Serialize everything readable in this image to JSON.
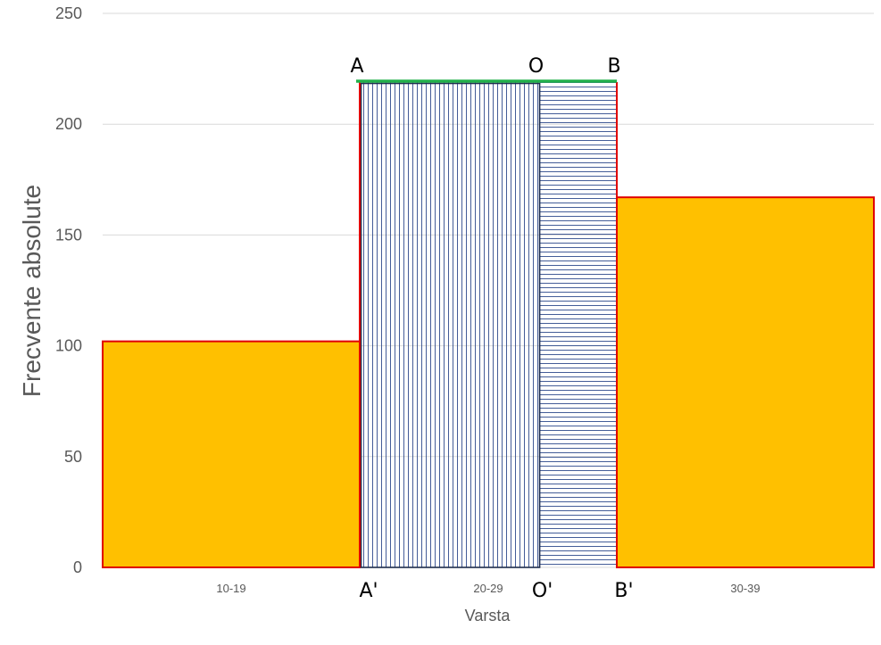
{
  "chart_data": {
    "type": "bar",
    "title": "",
    "xlabel": "Varsta",
    "ylabel": "Frecvente absolute",
    "categories": [
      "10-19",
      "20-29",
      "30-39"
    ],
    "values": [
      102,
      219,
      167
    ],
    "ylim": [
      0,
      250
    ],
    "yticks": [
      "0",
      "50",
      "100",
      "150",
      "200",
      "250"
    ],
    "grid": true,
    "colors": {
      "bar_fill": "#FFC000",
      "bar_stroke": "#E00000",
      "hatch": "#2E4A8C",
      "outline": "#1F2D4D",
      "top_line": "#22B04B",
      "grid": "#D9D9D9"
    },
    "annotations": {
      "top": [
        "A",
        "O",
        "B"
      ],
      "bottom": [
        "A'",
        "O'",
        "B'"
      ],
      "split_fraction": 0.7
    }
  }
}
